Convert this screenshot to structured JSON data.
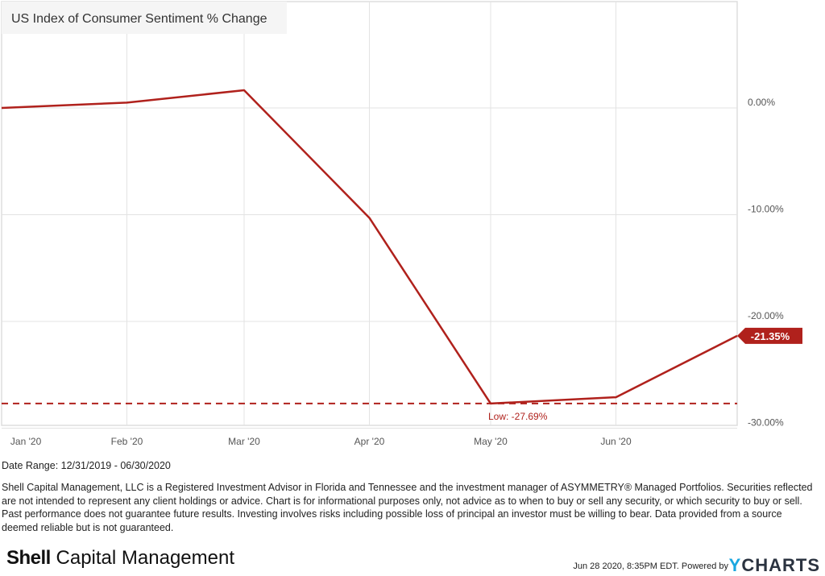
{
  "chart_data": {
    "type": "line",
    "title": "US Index of Consumer Sentiment % Change",
    "x_dates": [
      "12/31/2019",
      "01/31/2020",
      "02/29/2020",
      "03/31/2020",
      "04/30/2020",
      "05/31/2020",
      "06/30/2020"
    ],
    "x_days": [
      0,
      31,
      60,
      91,
      121,
      152,
      182
    ],
    "values": [
      0.0,
      0.5,
      1.66,
      -10.3,
      -27.69,
      -27.1,
      -21.35
    ],
    "x_tick_labels": [
      {
        "label": "Jan '20",
        "day": 6
      },
      {
        "label": "Feb '20",
        "day": 31
      },
      {
        "label": "Mar '20",
        "day": 60
      },
      {
        "label": "Apr '20",
        "day": 91
      },
      {
        "label": "May '20",
        "day": 121
      },
      {
        "label": "Jun '20",
        "day": 152
      }
    ],
    "y_ticks": [
      {
        "label": "0.00%",
        "value": 0
      },
      {
        "label": "-10.00%",
        "value": -10
      },
      {
        "label": "-20.00%",
        "value": -20
      },
      {
        "label": "-30.00%",
        "value": -30
      }
    ],
    "ylim": [
      -30,
      10
    ],
    "last_value_label": "-21.35%",
    "low_label": "Low: -27.69%",
    "low_value": -27.69,
    "line_color": "#b0211c",
    "grid": true
  },
  "footer": {
    "date_range": "Date Range: 12/31/2019 - 06/30/2020",
    "disclaimer": "Shell Capital Management, LLC is a Registered Investment Advisor in Florida and Tennessee and the investment manager of ASYMMETRY® Managed Portfolios. Securities reflected are not intended to represent any client holdings or advice. Chart is for informational purposes only, not advice as to when to buy or sell any security, or which security to buy or sell. Past performance does not guarantee future results. Investing involves risks including possible loss of principal an investor must be willing to bear. Data provided from a source deemed reliable but is not guaranteed.",
    "logo_bold": "Shell",
    "logo_rest": " Capital Management",
    "timestamp": "Jun 28 2020, 8:35PM EDT.  Powered by",
    "ycharts_y": "Y",
    "ycharts_rest": "CHARTS"
  }
}
